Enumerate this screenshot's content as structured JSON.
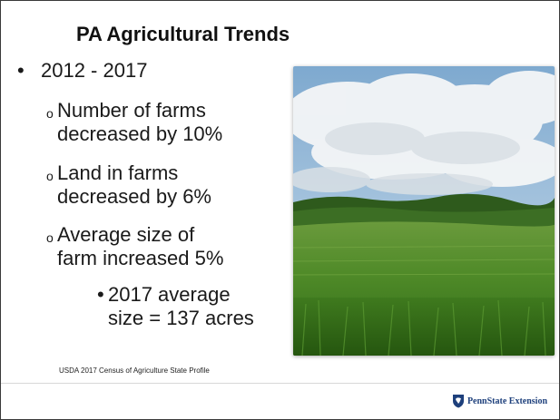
{
  "slide": {
    "title": "PA Agricultural Trends",
    "bullets": {
      "main": {
        "marker": "•",
        "text": "2012 - 2017"
      },
      "subitems": [
        {
          "marker": "o",
          "text": "Number of farms\ndecreased by 10%"
        },
        {
          "marker": "o",
          "text": "Land in farms\ndecreased by 6%"
        },
        {
          "marker": "o",
          "text": "Average size of\nfarm increased 5%"
        }
      ],
      "nested": {
        "marker": "•",
        "text": "2017 average\nsize = 137 acres"
      }
    },
    "source": "USDA 2017 Census of Agriculture State Profile",
    "footer": {
      "brand": "PennState Extension",
      "logo_icon": "penn-state-shield-icon",
      "brand_color": "#1e407c"
    },
    "photo_icon": "farm-field-photo"
  }
}
